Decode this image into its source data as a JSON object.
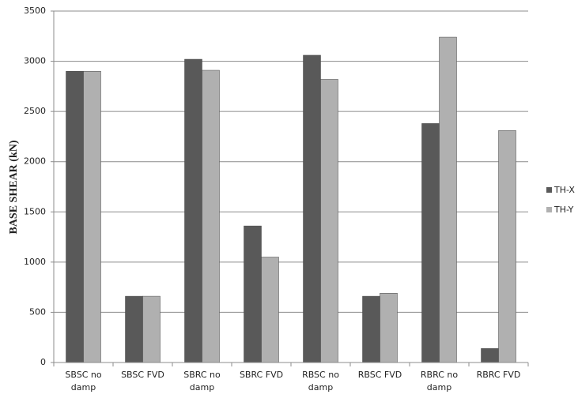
{
  "chart_data": {
    "type": "bar",
    "ylabel": "BASE SHEAR (kN)",
    "categories": [
      "SBSC no damp",
      "SBSC FVD",
      "SBRC no damp",
      "SBRC FVD",
      "RBSC no damp",
      "RBSC FVD",
      "RBRC no damp",
      "RBRC FVD"
    ],
    "series": [
      {
        "name": "TH-X",
        "color": "#595959",
        "values": [
          2900,
          660,
          3020,
          1360,
          3060,
          660,
          2380,
          140
        ]
      },
      {
        "name": "TH-Y",
        "color": "#b0b0b0",
        "values": [
          2900,
          660,
          2910,
          1050,
          2820,
          690,
          3240,
          2310
        ]
      }
    ],
    "ylim": [
      0,
      3500
    ],
    "yticks": [
      0,
      500,
      1000,
      1500,
      2000,
      2500,
      3000,
      3500
    ],
    "grid": true,
    "legend": "right"
  }
}
